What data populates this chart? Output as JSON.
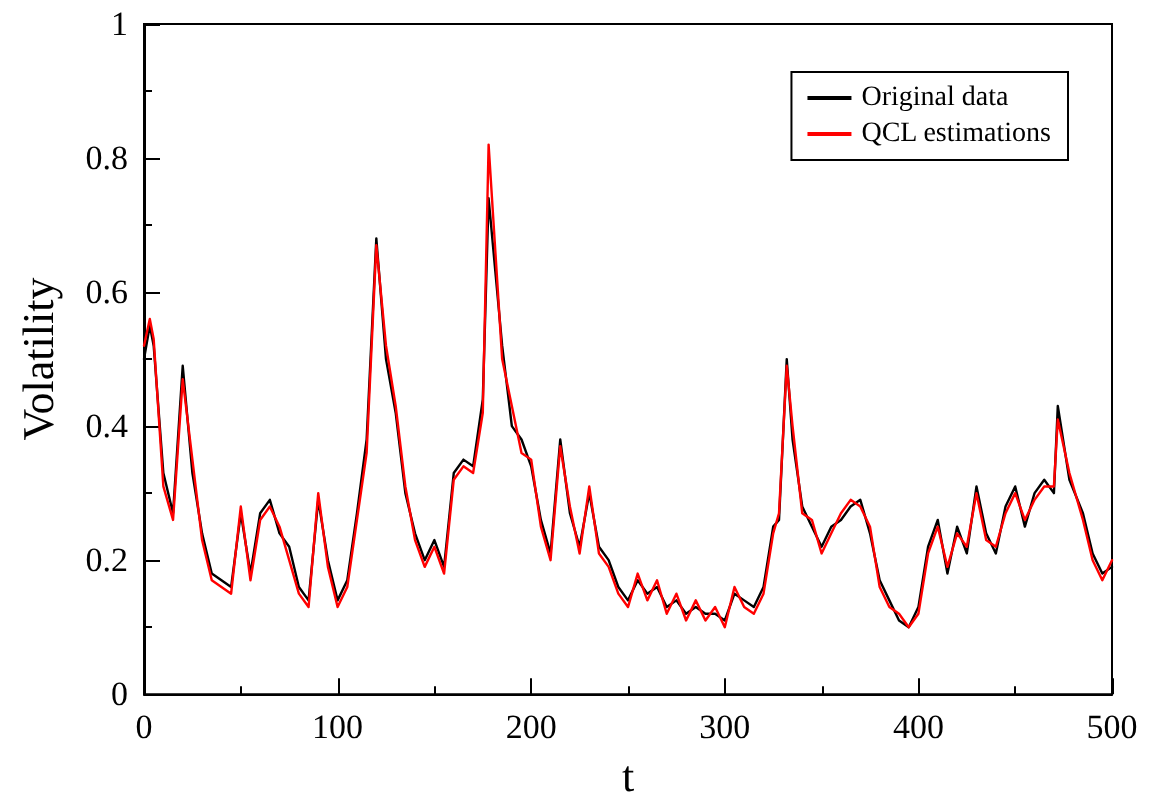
{
  "chart_data": {
    "type": "line",
    "xlabel": "t",
    "ylabel": "Volatility",
    "x": [
      0,
      3,
      5,
      10,
      15,
      20,
      25,
      30,
      35,
      40,
      45,
      50,
      55,
      60,
      65,
      70,
      75,
      80,
      85,
      90,
      95,
      100,
      105,
      110,
      115,
      120,
      125,
      130,
      135,
      140,
      145,
      150,
      155,
      160,
      165,
      170,
      175,
      178,
      185,
      190,
      195,
      200,
      205,
      210,
      215,
      220,
      225,
      230,
      235,
      240,
      245,
      250,
      255,
      260,
      265,
      270,
      275,
      280,
      285,
      290,
      295,
      300,
      305,
      310,
      315,
      320,
      325,
      328,
      332,
      335,
      340,
      345,
      350,
      355,
      360,
      365,
      370,
      375,
      380,
      385,
      390,
      395,
      400,
      405,
      410,
      415,
      420,
      425,
      430,
      435,
      440,
      445,
      450,
      455,
      460,
      465,
      470,
      472,
      478,
      485,
      490,
      495,
      500
    ],
    "series": [
      {
        "name": "Original data",
        "color": "#000000",
        "values": [
          0.5,
          0.55,
          0.52,
          0.33,
          0.27,
          0.49,
          0.33,
          0.24,
          0.18,
          0.17,
          0.16,
          0.27,
          0.18,
          0.27,
          0.29,
          0.24,
          0.22,
          0.16,
          0.14,
          0.29,
          0.2,
          0.14,
          0.17,
          0.27,
          0.38,
          0.68,
          0.5,
          0.42,
          0.3,
          0.24,
          0.2,
          0.23,
          0.19,
          0.33,
          0.35,
          0.34,
          0.44,
          0.74,
          0.52,
          0.4,
          0.38,
          0.34,
          0.26,
          0.21,
          0.38,
          0.27,
          0.22,
          0.3,
          0.22,
          0.2,
          0.16,
          0.14,
          0.17,
          0.15,
          0.16,
          0.13,
          0.14,
          0.12,
          0.13,
          0.12,
          0.12,
          0.11,
          0.15,
          0.14,
          0.13,
          0.16,
          0.25,
          0.26,
          0.5,
          0.38,
          0.28,
          0.25,
          0.22,
          0.25,
          0.26,
          0.28,
          0.29,
          0.24,
          0.17,
          0.14,
          0.11,
          0.1,
          0.13,
          0.22,
          0.26,
          0.18,
          0.25,
          0.21,
          0.31,
          0.24,
          0.21,
          0.28,
          0.31,
          0.25,
          0.3,
          0.32,
          0.3,
          0.43,
          0.32,
          0.27,
          0.21,
          0.18,
          0.19
        ]
      },
      {
        "name": "QCL estimations",
        "color": "#ff0000",
        "values": [
          0.52,
          0.56,
          0.53,
          0.31,
          0.26,
          0.47,
          0.35,
          0.23,
          0.17,
          0.16,
          0.15,
          0.28,
          0.17,
          0.26,
          0.28,
          0.25,
          0.2,
          0.15,
          0.13,
          0.3,
          0.19,
          0.13,
          0.16,
          0.26,
          0.36,
          0.67,
          0.52,
          0.43,
          0.31,
          0.23,
          0.19,
          0.22,
          0.18,
          0.32,
          0.34,
          0.33,
          0.42,
          0.82,
          0.5,
          0.43,
          0.36,
          0.35,
          0.25,
          0.2,
          0.37,
          0.28,
          0.21,
          0.31,
          0.21,
          0.19,
          0.15,
          0.13,
          0.18,
          0.14,
          0.17,
          0.12,
          0.15,
          0.11,
          0.14,
          0.11,
          0.13,
          0.1,
          0.16,
          0.13,
          0.12,
          0.15,
          0.24,
          0.27,
          0.49,
          0.4,
          0.27,
          0.26,
          0.21,
          0.24,
          0.27,
          0.29,
          0.28,
          0.25,
          0.16,
          0.13,
          0.12,
          0.1,
          0.12,
          0.21,
          0.25,
          0.19,
          0.24,
          0.22,
          0.3,
          0.23,
          0.22,
          0.27,
          0.3,
          0.26,
          0.29,
          0.31,
          0.31,
          0.41,
          0.33,
          0.26,
          0.2,
          0.17,
          0.2
        ]
      }
    ],
    "xlim": [
      0,
      500
    ],
    "xticks": [
      0,
      100,
      200,
      300,
      400,
      500
    ],
    "ylim": [
      0,
      1
    ],
    "yticks": [
      0,
      0.2,
      0.4,
      0.6,
      0.8,
      1
    ],
    "grid": false,
    "legend": "top right",
    "marker": "none",
    "line_style": "solid"
  }
}
